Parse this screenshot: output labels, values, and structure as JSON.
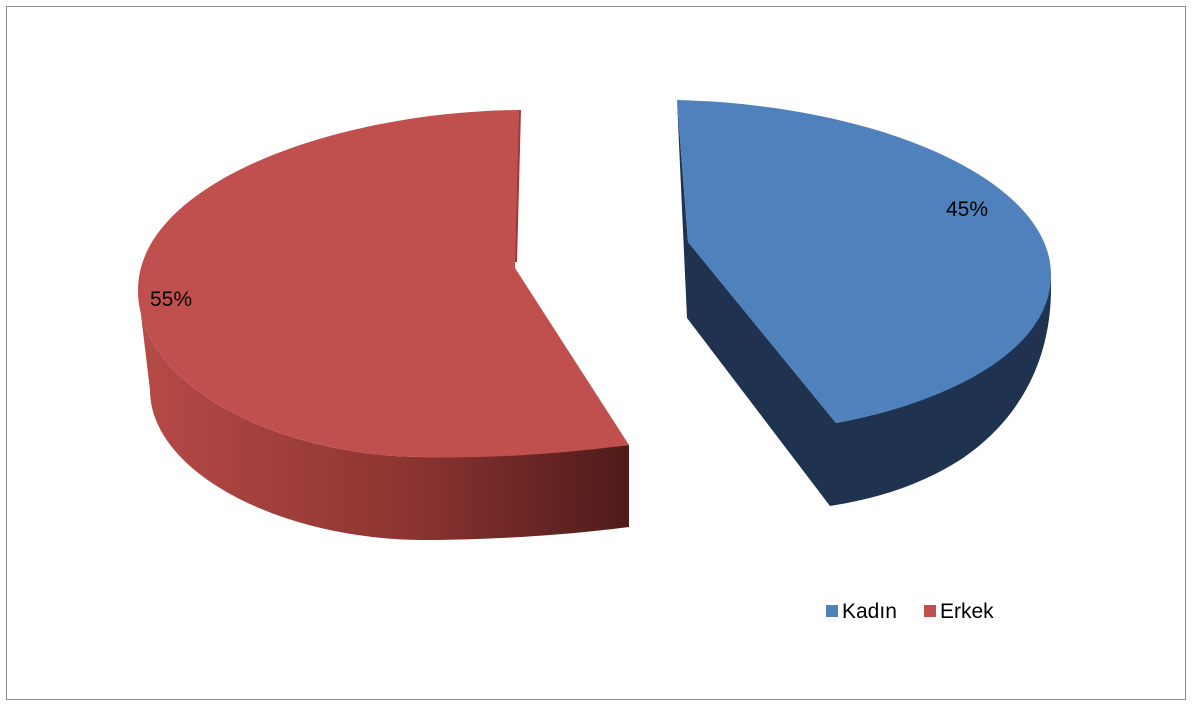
{
  "chart_data": {
    "type": "pie",
    "title": "",
    "categories": [
      "Kadın",
      "Erkek"
    ],
    "values": [
      45,
      55
    ],
    "data_labels": [
      "45%",
      "55%"
    ],
    "colors": [
      "#4F81BD",
      "#C0504D"
    ],
    "legend": {
      "position": "bottom-right",
      "entries": [
        {
          "label": "Kadın",
          "color": "#4F81BD"
        },
        {
          "label": "Erkek",
          "color": "#C0504D"
        }
      ]
    },
    "style": "3d-exploded"
  }
}
